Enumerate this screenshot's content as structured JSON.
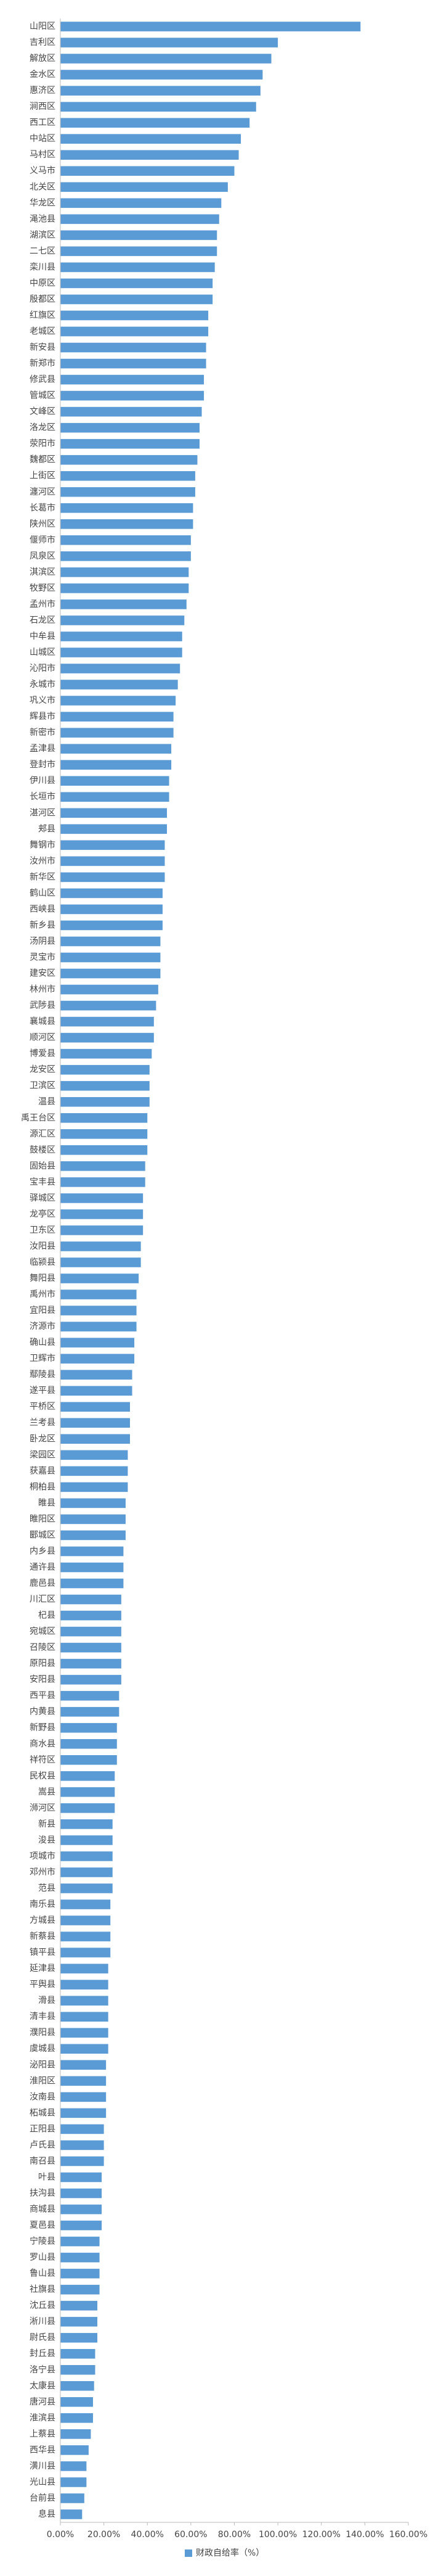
{
  "chart_data": {
    "type": "hbar",
    "color": "#5b9bd5",
    "legend": "财政自给率（%）",
    "legend_position": "bottom",
    "grid": false,
    "categories": [
      "山阳区",
      "吉利区",
      "解放区",
      "金水区",
      "惠济区",
      "涧西区",
      "西工区",
      "中站区",
      "马村区",
      "义马市",
      "北关区",
      "华龙区",
      "渑池县",
      "湖滨区",
      "二七区",
      "栾川县",
      "中原区",
      "殷都区",
      "红旗区",
      "老城区",
      "新安县",
      "新郑市",
      "修武县",
      "管城区",
      "文峰区",
      "洛龙区",
      "荥阳市",
      "魏都区",
      "上街区",
      "瀍河区",
      "长葛市",
      "陕州区",
      "偃师市",
      "凤泉区",
      "淇滨区",
      "牧野区",
      "孟州市",
      "石龙区",
      "中牟县",
      "山城区",
      "沁阳市",
      "永城市",
      "巩义市",
      "辉县市",
      "新密市",
      "孟津县",
      "登封市",
      "伊川县",
      "长垣市",
      "湛河区",
      "郏县",
      "舞钢市",
      "汝州市",
      "新华区",
      "鹤山区",
      "西峡县",
      "新乡县",
      "汤阴县",
      "灵宝市",
      "建安区",
      "林州市",
      "武陟县",
      "襄城县",
      "顺河区",
      "博爱县",
      "龙安区",
      "卫滨区",
      "温县",
      "禹王台区",
      "源汇区",
      "鼓楼区",
      "固始县",
      "宝丰县",
      "驿城区",
      "龙亭区",
      "卫东区",
      "汝阳县",
      "临颍县",
      "舞阳县",
      "禹州市",
      "宜阳县",
      "济源市",
      "确山县",
      "卫辉市",
      "鄢陵县",
      "遂平县",
      "平桥区",
      "兰考县",
      "卧龙区",
      "梁园区",
      "获嘉县",
      "桐柏县",
      "睢县",
      "睢阳区",
      "郾城区",
      "内乡县",
      "通许县",
      "鹿邑县",
      "川汇区",
      "杞县",
      "宛城区",
      "召陵区",
      "原阳县",
      "安阳县",
      "西平县",
      "内黄县",
      "新野县",
      "商水县",
      "祥符区",
      "民权县",
      "嵩县",
      "浉河区",
      "新县",
      "浚县",
      "项城市",
      "邓州市",
      "范县",
      "南乐县",
      "方城县",
      "新蔡县",
      "镇平县",
      "延津县",
      "平舆县",
      "滑县",
      "清丰县",
      "濮阳县",
      "虞城县",
      "泌阳县",
      "淮阳区",
      "汝南县",
      "柘城县",
      "正阳县",
      "卢氏县",
      "南召县",
      "叶县",
      "扶沟县",
      "商城县",
      "夏邑县",
      "宁陵县",
      "罗山县",
      "鲁山县",
      "社旗县",
      "沈丘县",
      "淅川县",
      "尉氏县",
      "封丘县",
      "洛宁县",
      "太康县",
      "唐河县",
      "淮滨县",
      "上蔡县",
      "西华县",
      "潢川县",
      "光山县",
      "台前县",
      "息县"
    ],
    "values": [
      138,
      100,
      97,
      93,
      92,
      90,
      87,
      83,
      82,
      80,
      77,
      74,
      73,
      72,
      72,
      71,
      70,
      70,
      68,
      68,
      67,
      67,
      66,
      66,
      65,
      64,
      64,
      63,
      62,
      62,
      61,
      61,
      60,
      60,
      59,
      59,
      58,
      57,
      56,
      56,
      55,
      54,
      53,
      52,
      52,
      51,
      51,
      50,
      50,
      49,
      49,
      48,
      48,
      48,
      47,
      47,
      47,
      46,
      46,
      46,
      45,
      44,
      43,
      43,
      42,
      41,
      41,
      41,
      40,
      40,
      40,
      39,
      39,
      38,
      38,
      38,
      37,
      37,
      36,
      35,
      35,
      35,
      34,
      34,
      33,
      33,
      32,
      32,
      32,
      31,
      31,
      31,
      30,
      30,
      30,
      29,
      29,
      29,
      28,
      28,
      28,
      28,
      28,
      28,
      27,
      27,
      26,
      26,
      26,
      25,
      25,
      25,
      24,
      24,
      24,
      24,
      24,
      23,
      23,
      23,
      23,
      22,
      22,
      22,
      22,
      22,
      22,
      21,
      21,
      21,
      21,
      20,
      20,
      20,
      19,
      19,
      19,
      19,
      18,
      18,
      18,
      18,
      17,
      17,
      17,
      16,
      16,
      15.5,
      15,
      15,
      14,
      13,
      12,
      12,
      11,
      10
    ],
    "xlim": [
      0,
      160
    ],
    "xticks": [
      {
        "value": 0,
        "label": "0.00%"
      },
      {
        "value": 20,
        "label": "20.00%"
      },
      {
        "value": 40,
        "label": "40.00%"
      },
      {
        "value": 60,
        "label": "60.00%"
      },
      {
        "value": 80,
        "label": "80.00%"
      },
      {
        "value": 100,
        "label": "100.00%"
      },
      {
        "value": 120,
        "label": "120.00%"
      },
      {
        "value": 140,
        "label": "140.00%"
      },
      {
        "value": 160,
        "label": "160.00%"
      }
    ]
  }
}
